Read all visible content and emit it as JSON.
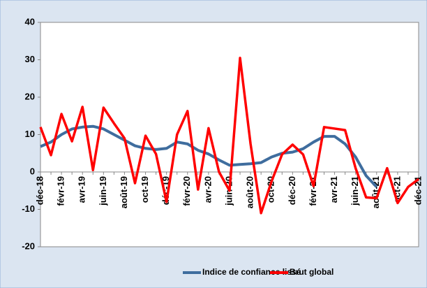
{
  "chart_data": {
    "type": "line",
    "categories": [
      "déc-18",
      null,
      "févr-19",
      null,
      "avr-19",
      null,
      "juin-19",
      null,
      "août-19",
      null,
      "oct-19",
      null,
      "déc-19",
      null,
      "févr-20",
      null,
      "avr-20",
      null,
      "juin-20",
      null,
      "août-20",
      null,
      "oct-20",
      null,
      "déc-20",
      null,
      "févr-21",
      null,
      "avr-21",
      null,
      "juin-21",
      null,
      "août-21",
      null,
      "oct-21",
      null,
      "déc-21"
    ],
    "series": [
      {
        "name": "Indice de confiance lissé",
        "color": "#3f6d9e",
        "values": [
          6.8,
          8,
          10,
          11.5,
          12,
          12.2,
          11.5,
          10,
          8.5,
          7,
          6.3,
          6,
          6.3,
          8,
          7.5,
          5.8,
          4.8,
          3.2,
          1.8,
          2,
          2.2,
          2.5,
          4,
          5,
          5.3,
          6.2,
          8,
          9.5,
          9.5,
          7.5,
          4,
          -1,
          -4,
          null,
          null,
          null,
          null
        ]
      },
      {
        "name": "Brut global",
        "color": "#ff0000",
        "values": [
          12,
          4.5,
          15.5,
          8.2,
          17.4,
          0.5,
          17.2,
          13,
          9,
          -3,
          9.7,
          4.8,
          -8,
          10,
          16.3,
          -4.7,
          11.7,
          0,
          -5,
          30.5,
          7.5,
          -11,
          -2.5,
          4.7,
          7.3,
          4.7,
          -3.8,
          12,
          11.6,
          11.2,
          1,
          -6.8,
          -7,
          1,
          -8.3,
          -4,
          -1.9
        ]
      }
    ],
    "ylim": [
      -20,
      40
    ],
    "yticks": [
      -20,
      -10,
      0,
      10,
      20,
      30,
      40
    ],
    "grid": false,
    "legend": "bottom"
  }
}
